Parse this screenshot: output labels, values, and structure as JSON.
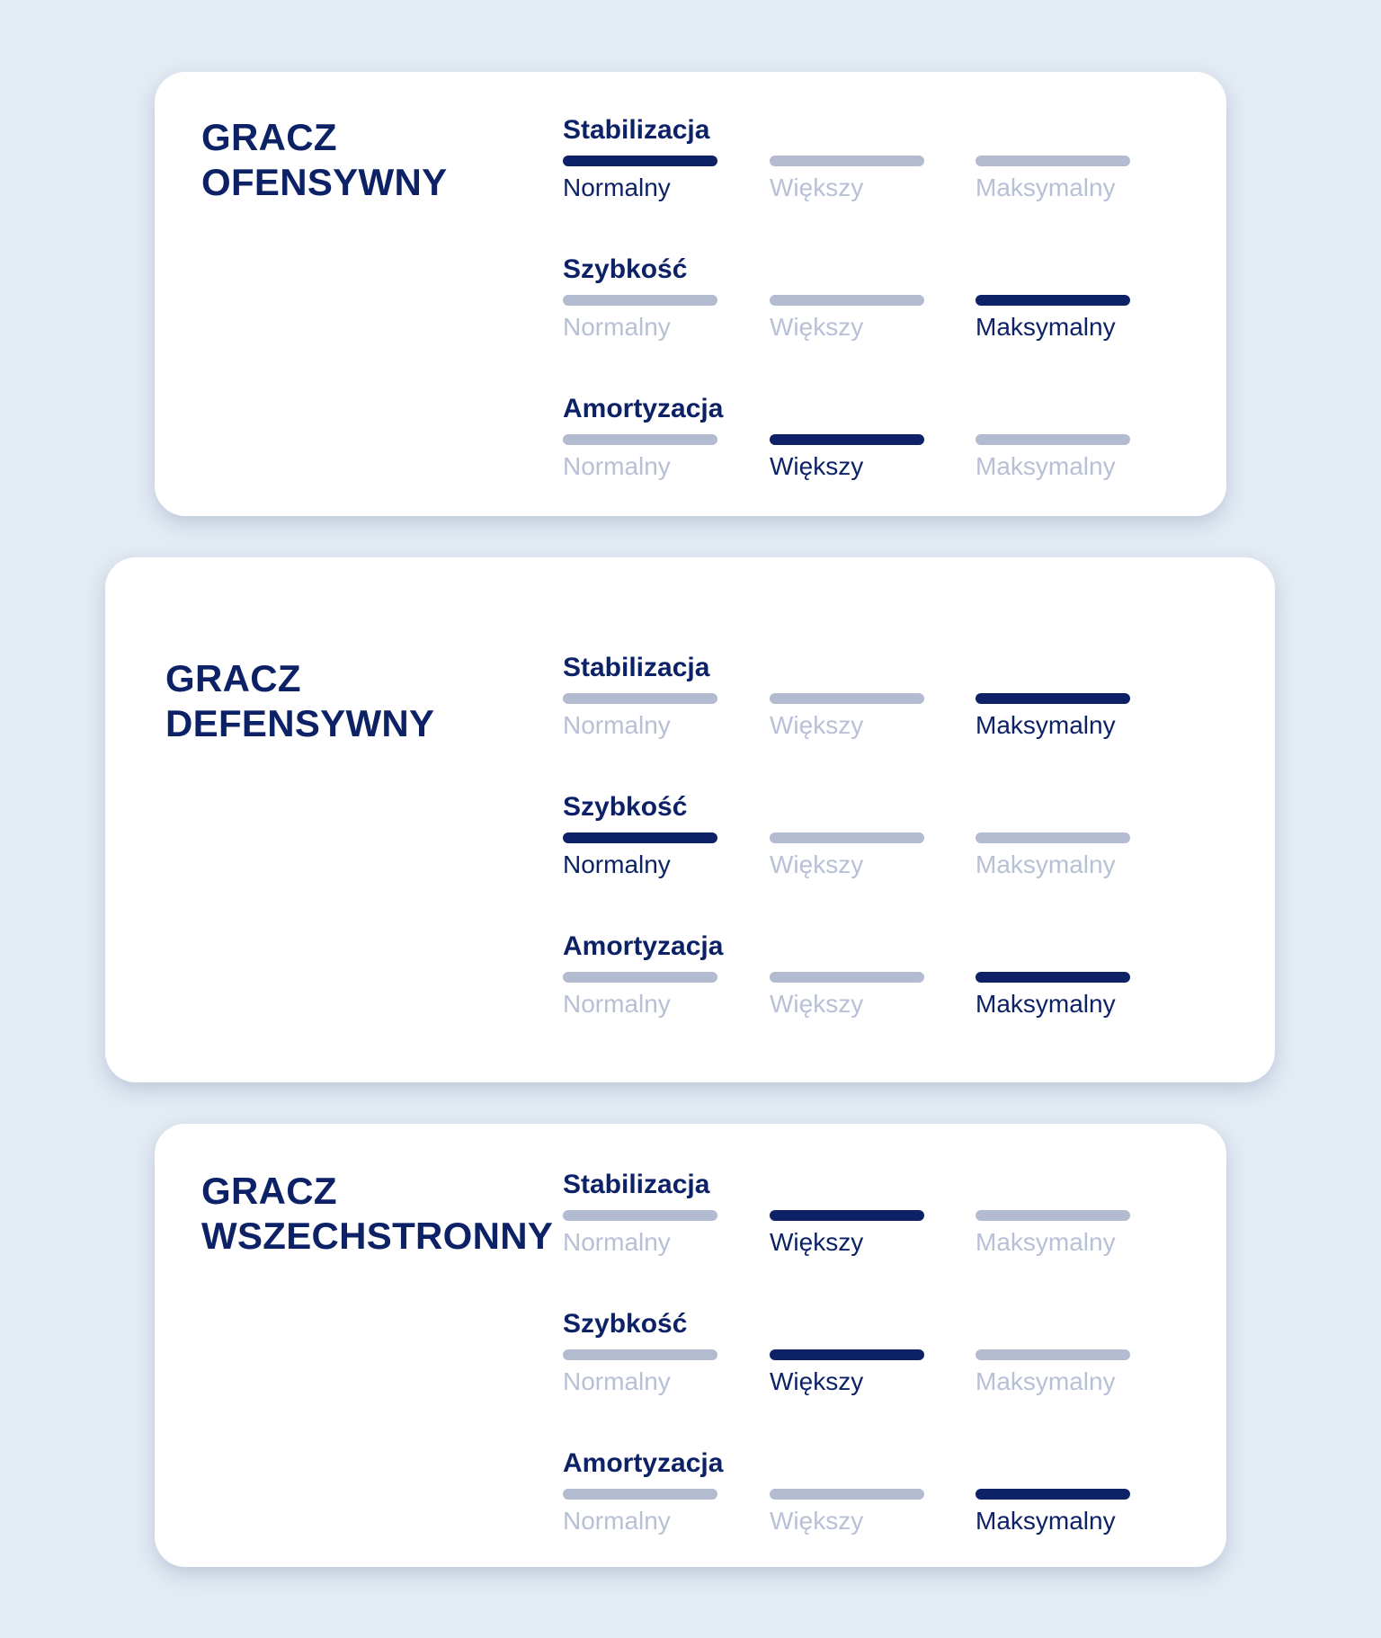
{
  "colors": {
    "background": "#e3ebf4",
    "active": "#0d2266",
    "inactive_bar": "#b3bbd0",
    "inactive_text": "#b8c0d6"
  },
  "options": [
    "Normalny",
    "Większy",
    "Maksymalny"
  ],
  "cards": [
    {
      "title": [
        "GRACZ",
        "OFENSYWNY"
      ],
      "rows": [
        {
          "label": "Stabilizacja",
          "selected": "Normalny"
        },
        {
          "label": "Szybkość",
          "selected": "Maksymalny"
        },
        {
          "label": "Amortyzacja",
          "selected": "Większy"
        }
      ]
    },
    {
      "title": [
        "GRACZ",
        "DEFENSYWNY"
      ],
      "rows": [
        {
          "label": "Stabilizacja",
          "selected": "Maksymalny"
        },
        {
          "label": "Szybkość",
          "selected": "Normalny"
        },
        {
          "label": "Amortyzacja",
          "selected": "Maksymalny"
        }
      ]
    },
    {
      "title": [
        "GRACZ",
        "WSZECHSTRONNY"
      ],
      "rows": [
        {
          "label": "Stabilizacja",
          "selected": "Większy"
        },
        {
          "label": "Szybkość",
          "selected": "Większy"
        },
        {
          "label": "Amortyzacja",
          "selected": "Maksymalny"
        }
      ]
    }
  ]
}
